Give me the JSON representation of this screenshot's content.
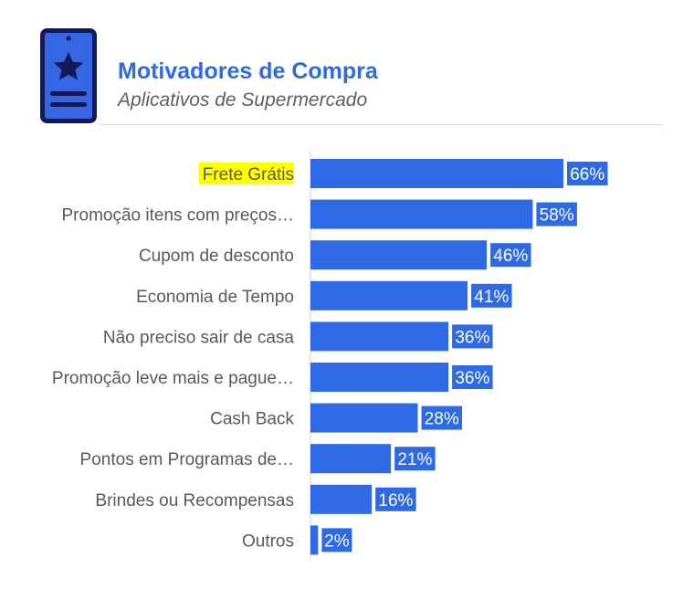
{
  "header": {
    "title": "Motivadores de Compra",
    "subtitle": "Aplicativos de Supermercado",
    "icon": "mobile-star-icon"
  },
  "colors": {
    "accent": "#2e6ae6",
    "icon_fill": "#3567e4",
    "icon_stroke": "#15195a",
    "label_text": "#595959",
    "highlight": "#ffff00"
  },
  "chart_data": {
    "type": "bar",
    "orientation": "horizontal",
    "categories": [
      "Frete Grátis",
      "Promoção itens com preços…",
      "Cupom de desconto",
      "Economia de Tempo",
      "Não preciso sair de casa",
      "Promoção leve mais e pague…",
      "Cash Back",
      "Pontos em Programas de…",
      "Brindes ou Recompensas",
      "Outros"
    ],
    "values": [
      66,
      58,
      46,
      41,
      36,
      36,
      28,
      21,
      16,
      2
    ],
    "value_labels": [
      "66%",
      "58%",
      "46%",
      "41%",
      "36%",
      "36%",
      "28%",
      "21%",
      "16%",
      "2%"
    ],
    "highlighted_category": "Frete Grátis",
    "xlim": [
      0,
      66
    ],
    "grid": false,
    "legend": "none"
  }
}
